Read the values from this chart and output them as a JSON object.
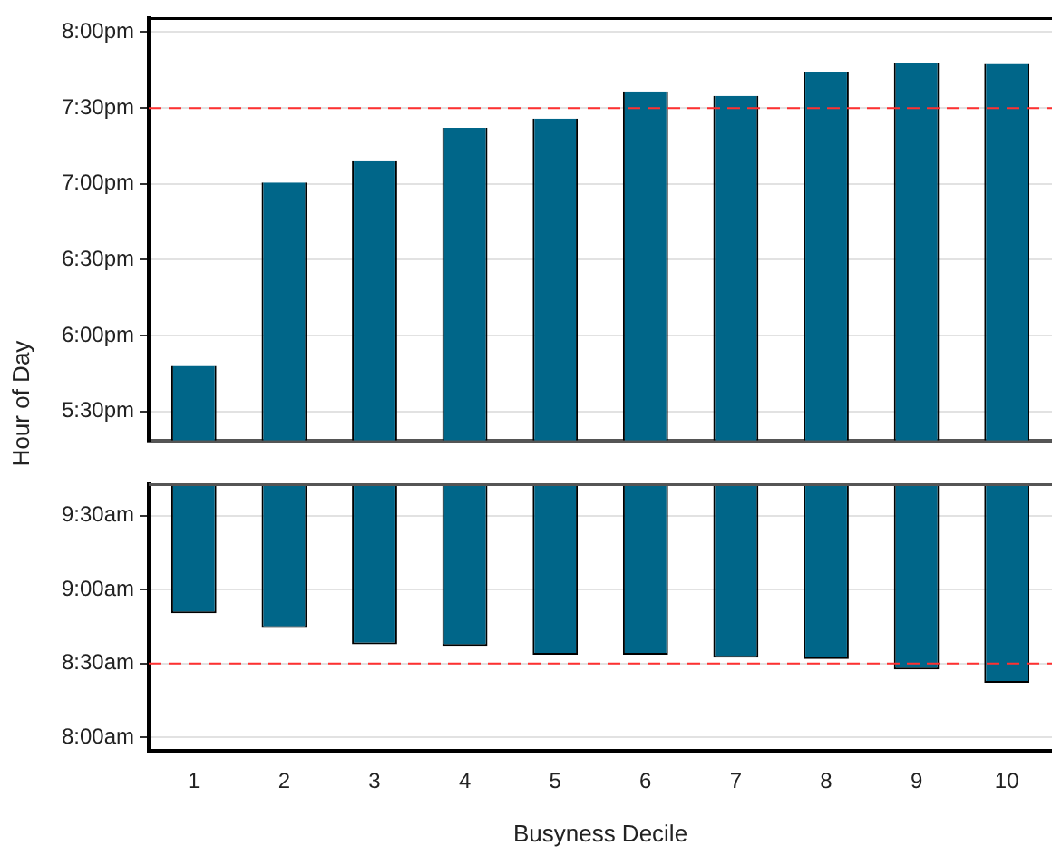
{
  "chart_data": [
    {
      "type": "bar",
      "ylabel": "Hour of Day",
      "categories": [
        "1",
        "2",
        "3",
        "4",
        "5",
        "6",
        "7",
        "8",
        "9",
        "10"
      ],
      "series": [
        {
          "color": "#006689",
          "values": [
            17.8,
            19.01,
            19.15,
            19.37,
            19.43,
            19.61,
            19.58,
            19.74,
            19.8,
            19.79
          ]
        }
      ],
      "ylim": [
        17.31,
        20.09
      ],
      "yticks": [
        {
          "value": 17.5,
          "label": "5:30pm"
        },
        {
          "value": 18,
          "label": "6:00pm"
        },
        {
          "value": 18.5,
          "label": "6:30pm"
        },
        {
          "value": 19,
          "label": "7:00pm"
        },
        {
          "value": 19.5,
          "label": "7:30pm"
        },
        {
          "value": 20,
          "label": "8:00pm"
        }
      ],
      "ref_lines": [
        {
          "axis": "y",
          "value": 19.5,
          "color": "#ff3030",
          "line_style": "dashed"
        }
      ],
      "grid": "y",
      "tick_labels": "y",
      "legend": false
    },
    {
      "type": "bar",
      "xlabel": "Busyness Decile",
      "categories": [
        "1",
        "2",
        "3",
        "4",
        "5",
        "6",
        "7",
        "8",
        "9",
        "10"
      ],
      "series": [
        {
          "color": "#006689",
          "base": [
            8.84,
            8.74,
            8.63,
            8.62,
            8.56,
            8.56,
            8.54,
            8.53,
            8.46,
            8.37
          ],
          "values": [
            0.87,
            0.97,
            1.08,
            1.09,
            1.15,
            1.15,
            1.17,
            1.18,
            1.25,
            1.34
          ]
        }
      ],
      "ylim": [
        7.91,
        9.71
      ],
      "yticks": [
        {
          "value": 8,
          "label": "8:00am"
        },
        {
          "value": 8.5,
          "label": "8:30am"
        },
        {
          "value": 9,
          "label": "9:00am"
        },
        {
          "value": 9.5,
          "label": "9:30am"
        }
      ],
      "ref_lines": [
        {
          "axis": "y",
          "value": 8.5,
          "color": "#ff3030",
          "line_style": "dashed"
        }
      ],
      "grid": "y",
      "legend": false
    }
  ]
}
